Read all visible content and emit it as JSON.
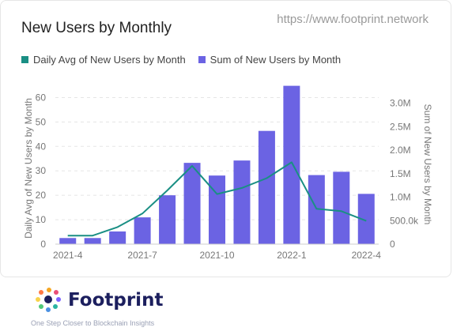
{
  "header": {
    "title": "New Users by Monthly",
    "url": "https://www.footprint.network"
  },
  "legend": {
    "line_label": "Daily Avg of New Users by Month",
    "bar_label": "Sum of New Users by Month"
  },
  "colors": {
    "line": "#1a8f84",
    "bar": "#6b63e3",
    "grid": "#e5e5e5",
    "axis_text": "#777777"
  },
  "footer": {
    "brand": "Footprint",
    "tagline": "One Step Closer to Blockchain Insights",
    "logo_icon": "footprint-logo-icon"
  },
  "chart_data": {
    "type": "bar",
    "categories": [
      "2021-4",
      "2021-5",
      "2021-6",
      "2021-7",
      "2021-8",
      "2021-9",
      "2021-10",
      "2021-11",
      "2021-12",
      "2022-1",
      "2022-2",
      "2022-3",
      "2022-4"
    ],
    "x_tick_labels": [
      "2021-4",
      "2021-7",
      "2021-10",
      "2022-1",
      "2022-4"
    ],
    "series": [
      {
        "name": "Sum of New Users by Month",
        "type": "bar",
        "axis": "right",
        "values": [
          130000,
          130000,
          270000,
          570000,
          1040000,
          1730000,
          1460000,
          1780000,
          2410000,
          3370000,
          1470000,
          1540000,
          1070000
        ]
      },
      {
        "name": "Daily Avg of New Users by Month",
        "type": "line",
        "axis": "left",
        "values": [
          3.5,
          3.5,
          7,
          12.5,
          22,
          32,
          20.5,
          23,
          27,
          33.5,
          14.5,
          13.5,
          9.5
        ]
      }
    ],
    "y_left": {
      "label": "Daily Avg of New Users by Month",
      "ticks": [
        "0",
        "10",
        "20",
        "30",
        "40",
        "50",
        "60"
      ],
      "ylim": [
        0,
        65
      ]
    },
    "y_right": {
      "label": "Sum of New Users by Month",
      "ticks": [
        "0",
        "500.0k",
        "1.0M",
        "1.5M",
        "2.0M",
        "2.5M",
        "3.0M"
      ],
      "ylim": [
        0,
        3380000
      ]
    },
    "grid": true,
    "legend_position": "top-left"
  }
}
